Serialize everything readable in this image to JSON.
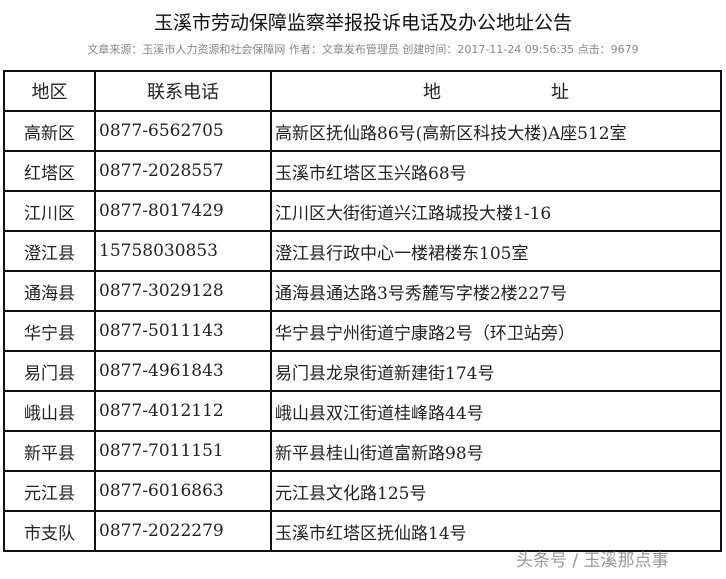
{
  "title": "玉溪市劳动保障监察举报投诉电话及办公地址公告",
  "meta": "文章来源：玉溪市人力资源和社会保障网 作者：文章发布管理员 创建时间：2017-11-24 09:56:35 点击：9679",
  "table": {
    "headers": [
      "地区",
      "联系电话",
      "地",
      "址"
    ],
    "rows": [
      {
        "area": "高新区",
        "phone": "0877-6562705",
        "address": "高新区抚仙路86号(高新区科技大楼)A座512室"
      },
      {
        "area": "红塔区",
        "phone": "0877-2028557",
        "address": "玉溪市红塔区玉兴路68号"
      },
      {
        "area": "江川区",
        "phone": "0877-8017429",
        "address": "江川区大街街道兴江路城投大楼1-16"
      },
      {
        "area": "澄江县",
        "phone": "15758030853",
        "address": "澄江县行政中心一楼裙楼东105室"
      },
      {
        "area": "通海县",
        "phone": "0877-3029128",
        "address": "通海县通达路3号秀麓写字楼2楼227号"
      },
      {
        "area": "华宁县",
        "phone": "0877-5011143",
        "address": "华宁县宁州街道宁康路2号（环卫站旁）"
      },
      {
        "area": "易门县",
        "phone": "0877-4961843",
        "address": "易门县龙泉街道新建街174号"
      },
      {
        "area": "峨山县",
        "phone": "0877-4012112",
        "address": "峨山县双江街道桂峰路44号"
      },
      {
        "area": "新平县",
        "phone": "0877-7011151",
        "address": "新平县桂山街道富新路98号"
      },
      {
        "area": "元江县",
        "phone": "0877-6016863",
        "address": "元江县文化路125号"
      },
      {
        "area": "市支队",
        "phone": "0877-2022279",
        "address": "玉溪市红塔区抚仙路14号"
      }
    ]
  },
  "watermark": "头条号 / 玉溪那点事"
}
